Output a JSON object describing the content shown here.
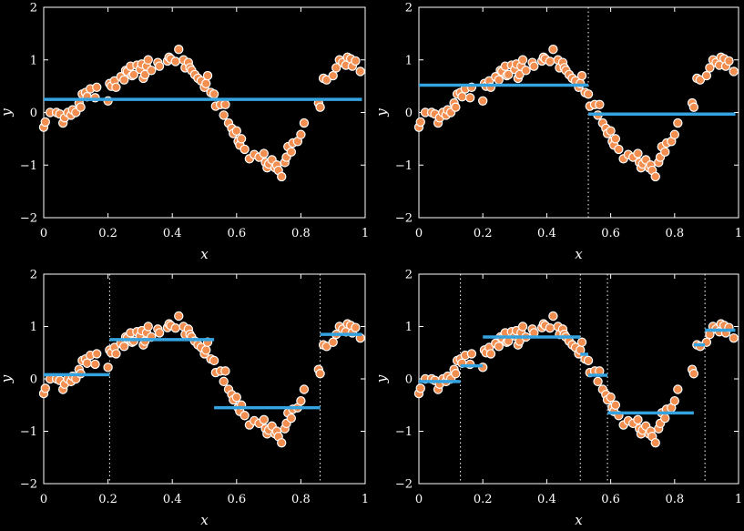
{
  "colors": {
    "points": "#f28e4f",
    "step_fit": "#35a3e0",
    "background": "#000000",
    "axes": "#ffffff"
  },
  "chart_data": [
    {
      "type": "scatter",
      "title": "",
      "xlabel": "x",
      "ylabel": "y",
      "xlim": [
        0,
        1
      ],
      "ylim": [
        -2,
        2
      ],
      "xticks": [
        "0",
        "0.2",
        "0.4",
        "0.6",
        "0.8",
        "1"
      ],
      "yticks": [
        "−2",
        "−1",
        "0",
        "1",
        "2"
      ],
      "splits": [],
      "steps": [
        {
          "x0": 0.0,
          "x1": 0.99,
          "y": 0.25
        }
      ]
    },
    {
      "type": "scatter",
      "title": "",
      "xlabel": "x",
      "ylabel": "y",
      "xlim": [
        0,
        1
      ],
      "ylim": [
        -2,
        2
      ],
      "xticks": [
        "0",
        "0.2",
        "0.4",
        "0.6",
        "0.8",
        "1"
      ],
      "yticks": [
        "−2",
        "−1",
        "0",
        "1",
        "2"
      ],
      "splits": [
        0.53
      ],
      "steps": [
        {
          "x0": 0.0,
          "x1": 0.53,
          "y": 0.52
        },
        {
          "x0": 0.53,
          "x1": 0.99,
          "y": -0.03
        }
      ]
    },
    {
      "type": "scatter",
      "title": "",
      "xlabel": "x",
      "ylabel": "y",
      "xlim": [
        0,
        1
      ],
      "ylim": [
        -2,
        2
      ],
      "xticks": [
        "0",
        "0.2",
        "0.4",
        "0.6",
        "0.8",
        "1"
      ],
      "yticks": [
        "−2",
        "−1",
        "0",
        "1",
        "2"
      ],
      "splits": [
        0.205,
        0.86
      ],
      "steps": [
        {
          "x0": 0.0,
          "x1": 0.205,
          "y": 0.08
        },
        {
          "x0": 0.205,
          "x1": 0.53,
          "y": 0.75
        },
        {
          "x0": 0.53,
          "x1": 0.86,
          "y": -0.55
        },
        {
          "x0": 0.86,
          "x1": 0.99,
          "y": 0.85
        }
      ]
    },
    {
      "type": "scatter",
      "title": "",
      "xlabel": "x",
      "ylabel": "y",
      "xlim": [
        0,
        1
      ],
      "ylim": [
        -2,
        2
      ],
      "xticks": [
        "0",
        "0.2",
        "0.4",
        "0.6",
        "0.8",
        "1"
      ],
      "yticks": [
        "−2",
        "−1",
        "0",
        "1",
        "2"
      ],
      "splits": [
        0.13,
        0.505,
        0.59,
        0.895
      ],
      "steps": [
        {
          "x0": 0.0,
          "x1": 0.13,
          "y": -0.05
        },
        {
          "x0": 0.13,
          "x1": 0.2,
          "y": 0.25
        },
        {
          "x0": 0.2,
          "x1": 0.505,
          "y": 0.8
        },
        {
          "x0": 0.505,
          "x1": 0.53,
          "y": 0.47
        },
        {
          "x0": 0.53,
          "x1": 0.59,
          "y": 0.07
        },
        {
          "x0": 0.59,
          "x1": 0.86,
          "y": -0.65
        },
        {
          "x0": 0.86,
          "x1": 0.895,
          "y": 0.65
        },
        {
          "x0": 0.895,
          "x1": 0.99,
          "y": 0.93
        }
      ]
    }
  ],
  "points": {
    "x": [
      0.0,
      0.005,
      0.02,
      0.04,
      0.05,
      0.06,
      0.065,
      0.075,
      0.085,
      0.09,
      0.1,
      0.11,
      0.115,
      0.12,
      0.13,
      0.135,
      0.145,
      0.16,
      0.165,
      0.2,
      0.205,
      0.21,
      0.22,
      0.225,
      0.24,
      0.25,
      0.255,
      0.26,
      0.27,
      0.275,
      0.28,
      0.29,
      0.3,
      0.305,
      0.31,
      0.315,
      0.32,
      0.325,
      0.335,
      0.355,
      0.36,
      0.385,
      0.39,
      0.395,
      0.41,
      0.42,
      0.435,
      0.44,
      0.45,
      0.455,
      0.46,
      0.47,
      0.48,
      0.49,
      0.5,
      0.505,
      0.51,
      0.52,
      0.53,
      0.535,
      0.55,
      0.56,
      0.565,
      0.575,
      0.585,
      0.59,
      0.6,
      0.605,
      0.61,
      0.615,
      0.625,
      0.64,
      0.655,
      0.67,
      0.685,
      0.69,
      0.695,
      0.7,
      0.71,
      0.72,
      0.725,
      0.73,
      0.74,
      0.75,
      0.755,
      0.76,
      0.77,
      0.775,
      0.79,
      0.8,
      0.81,
      0.855,
      0.86,
      0.87,
      0.88,
      0.9,
      0.91,
      0.92,
      0.93,
      0.94,
      0.945,
      0.955,
      0.96,
      0.97,
      0.985
    ],
    "y": [
      -0.28,
      -0.18,
      0.0,
      0.0,
      -0.03,
      -0.2,
      -0.1,
      0.0,
      -0.05,
      0.05,
      0.0,
      0.18,
      0.1,
      0.35,
      0.38,
      0.3,
      0.45,
      0.28,
      0.48,
      0.22,
      0.55,
      0.5,
      0.6,
      0.48,
      0.68,
      0.62,
      0.8,
      0.78,
      0.88,
      0.7,
      0.72,
      0.9,
      0.82,
      0.92,
      0.65,
      0.72,
      0.88,
      1.0,
      0.8,
      0.95,
      0.88,
      0.98,
      1.05,
      1.02,
      0.97,
      1.2,
      1.0,
      0.85,
      0.95,
      0.85,
      0.8,
      0.72,
      0.65,
      0.6,
      0.48,
      0.55,
      0.7,
      0.38,
      0.35,
      0.12,
      0.15,
      -0.05,
      0.15,
      -0.2,
      -0.3,
      -0.4,
      -0.35,
      -0.55,
      -0.62,
      -0.5,
      -0.7,
      -0.88,
      -0.8,
      -0.85,
      -0.78,
      -0.95,
      -1.05,
      -0.98,
      -0.9,
      -1.05,
      -1.0,
      -1.1,
      -1.22,
      -0.95,
      -0.85,
      -0.65,
      -0.75,
      -0.58,
      -0.55,
      -0.42,
      -0.2,
      0.18,
      0.1,
      0.65,
      0.62,
      0.7,
      0.85,
      1.0,
      0.95,
      0.9,
      1.05,
      1.02,
      0.88,
      0.98,
      0.78
    ]
  }
}
